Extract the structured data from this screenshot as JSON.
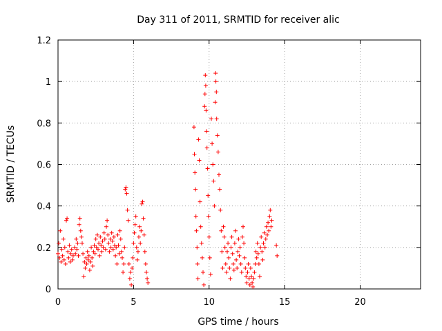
{
  "chart_data": {
    "type": "scatter",
    "title": "Day 311 of 2011, SRMTID for receiver alic",
    "xlabel": "GPS time / hours",
    "ylabel": "SRMTID / TECUs",
    "xlim": [
      0,
      24
    ],
    "ylim": [
      0,
      1.2
    ],
    "x_ticks": [
      0,
      5,
      10,
      15,
      20
    ],
    "x_tick_labels": [
      "0",
      "5",
      "10",
      "15",
      "20"
    ],
    "y_ticks": [
      0,
      0.2,
      0.4,
      0.6,
      0.8,
      1.0,
      1.2
    ],
    "y_tick_labels": [
      "0",
      "0.2",
      "0.4",
      "0.6",
      "0.8",
      "1",
      "1.2"
    ],
    "grid": true,
    "marker": "+",
    "color": "#ff0000",
    "series": [
      {
        "name": "SRMTID",
        "points": [
          [
            0.0,
            0.17
          ],
          [
            0.05,
            0.22
          ],
          [
            0.1,
            0.15
          ],
          [
            0.15,
            0.28
          ],
          [
            0.2,
            0.13
          ],
          [
            0.25,
            0.19
          ],
          [
            0.3,
            0.16
          ],
          [
            0.35,
            0.24
          ],
          [
            0.4,
            0.14
          ],
          [
            0.45,
            0.2
          ],
          [
            0.5,
            0.12
          ],
          [
            0.55,
            0.33
          ],
          [
            0.6,
            0.34
          ],
          [
            0.65,
            0.18
          ],
          [
            0.7,
            0.15
          ],
          [
            0.75,
            0.21
          ],
          [
            0.8,
            0.13
          ],
          [
            0.85,
            0.17
          ],
          [
            0.9,
            0.19
          ],
          [
            0.95,
            0.14
          ],
          [
            1.0,
            0.16
          ],
          [
            1.1,
            0.2
          ],
          [
            1.15,
            0.17
          ],
          [
            1.2,
            0.24
          ],
          [
            1.25,
            0.19
          ],
          [
            1.3,
            0.22
          ],
          [
            1.35,
            0.16
          ],
          [
            1.4,
            0.31
          ],
          [
            1.45,
            0.34
          ],
          [
            1.5,
            0.28
          ],
          [
            1.55,
            0.25
          ],
          [
            1.6,
            0.22
          ],
          [
            1.65,
            0.17
          ],
          [
            1.7,
            0.06
          ],
          [
            1.75,
            0.13
          ],
          [
            1.8,
            0.1
          ],
          [
            1.85,
            0.15
          ],
          [
            1.9,
            0.12
          ],
          [
            1.95,
            0.18
          ],
          [
            2.0,
            0.14
          ],
          [
            2.05,
            0.16
          ],
          [
            2.1,
            0.09
          ],
          [
            2.15,
            0.13
          ],
          [
            2.2,
            0.2
          ],
          [
            2.25,
            0.15
          ],
          [
            2.3,
            0.11
          ],
          [
            2.35,
            0.18
          ],
          [
            2.4,
            0.21
          ],
          [
            2.45,
            0.17
          ],
          [
            2.5,
            0.24
          ],
          [
            2.55,
            0.2
          ],
          [
            2.6,
            0.26
          ],
          [
            2.65,
            0.19
          ],
          [
            2.7,
            0.22
          ],
          [
            2.75,
            0.16
          ],
          [
            2.8,
            0.25
          ],
          [
            2.85,
            0.21
          ],
          [
            2.9,
            0.18
          ],
          [
            2.95,
            0.23
          ],
          [
            3.0,
            0.2
          ],
          [
            3.05,
            0.27
          ],
          [
            3.1,
            0.24
          ],
          [
            3.15,
            0.19
          ],
          [
            3.2,
            0.3
          ],
          [
            3.25,
            0.33
          ],
          [
            3.3,
            0.26
          ],
          [
            3.35,
            0.22
          ],
          [
            3.4,
            0.18
          ],
          [
            3.45,
            0.24
          ],
          [
            3.5,
            0.2
          ],
          [
            3.55,
            0.27
          ],
          [
            3.6,
            0.23
          ],
          [
            3.65,
            0.19
          ],
          [
            3.7,
            0.25
          ],
          [
            3.75,
            0.21
          ],
          [
            3.8,
            0.16
          ],
          [
            3.85,
            0.2
          ],
          [
            3.9,
            0.12
          ],
          [
            3.95,
            0.26
          ],
          [
            4.0,
            0.21
          ],
          [
            4.05,
            0.17
          ],
          [
            4.1,
            0.28
          ],
          [
            4.15,
            0.24
          ],
          [
            4.2,
            0.18
          ],
          [
            4.25,
            0.15
          ],
          [
            4.3,
            0.08
          ],
          [
            4.35,
            0.12
          ],
          [
            4.4,
            0.2
          ],
          [
            4.45,
            0.48
          ],
          [
            4.5,
            0.49
          ],
          [
            4.55,
            0.46
          ],
          [
            4.6,
            0.38
          ],
          [
            4.65,
            0.33
          ],
          [
            4.7,
            0.12
          ],
          [
            4.75,
            0.05
          ],
          [
            4.8,
            0.08
          ],
          [
            4.85,
            0.02
          ],
          [
            4.9,
            0.1
          ],
          [
            4.95,
            0.15
          ],
          [
            5.0,
            0.22
          ],
          [
            5.05,
            0.27
          ],
          [
            5.1,
            0.31
          ],
          [
            5.15,
            0.35
          ],
          [
            5.2,
            0.2
          ],
          [
            5.25,
            0.14
          ],
          [
            5.3,
            0.18
          ],
          [
            5.35,
            0.25
          ],
          [
            5.4,
            0.3
          ],
          [
            5.45,
            0.22
          ],
          [
            5.5,
            0.28
          ],
          [
            5.55,
            0.41
          ],
          [
            5.6,
            0.42
          ],
          [
            5.65,
            0.34
          ],
          [
            5.7,
            0.26
          ],
          [
            5.75,
            0.18
          ],
          [
            5.8,
            0.12
          ],
          [
            5.85,
            0.08
          ],
          [
            5.9,
            0.05
          ],
          [
            5.95,
            0.03
          ],
          [
            9.0,
            0.78
          ],
          [
            9.03,
            0.65
          ],
          [
            9.06,
            0.56
          ],
          [
            9.1,
            0.48
          ],
          [
            9.13,
            0.35
          ],
          [
            9.16,
            0.28
          ],
          [
            9.2,
            0.2
          ],
          [
            9.23,
            0.12
          ],
          [
            9.26,
            0.05
          ],
          [
            9.3,
            0.72
          ],
          [
            9.35,
            0.62
          ],
          [
            9.4,
            0.42
          ],
          [
            9.45,
            0.3
          ],
          [
            9.5,
            0.22
          ],
          [
            9.55,
            0.15
          ],
          [
            9.6,
            0.08
          ],
          [
            9.65,
            0.02
          ],
          [
            9.7,
            0.88
          ],
          [
            9.73,
            0.94
          ],
          [
            9.75,
            1.03
          ],
          [
            9.78,
            0.98
          ],
          [
            9.8,
            0.86
          ],
          [
            9.83,
            0.76
          ],
          [
            9.86,
            0.68
          ],
          [
            9.9,
            0.58
          ],
          [
            9.93,
            0.45
          ],
          [
            9.96,
            0.35
          ],
          [
            10.0,
            0.25
          ],
          [
            10.05,
            0.15
          ],
          [
            10.1,
            0.07
          ],
          [
            10.15,
            0.82
          ],
          [
            10.2,
            0.7
          ],
          [
            10.25,
            0.6
          ],
          [
            10.3,
            0.52
          ],
          [
            10.35,
            0.4
          ],
          [
            10.4,
            0.9
          ],
          [
            10.43,
            1.04
          ],
          [
            10.45,
            1.0
          ],
          [
            10.48,
            0.95
          ],
          [
            10.5,
            0.82
          ],
          [
            10.55,
            0.74
          ],
          [
            10.6,
            0.66
          ],
          [
            10.65,
            0.55
          ],
          [
            10.7,
            0.48
          ],
          [
            10.75,
            0.38
          ],
          [
            10.8,
            0.28
          ],
          [
            10.85,
            0.18
          ],
          [
            10.9,
            0.1
          ],
          [
            10.95,
            0.3
          ],
          [
            11.0,
            0.25
          ],
          [
            11.05,
            0.2
          ],
          [
            11.1,
            0.12
          ],
          [
            11.15,
            0.08
          ],
          [
            11.2,
            0.18
          ],
          [
            11.25,
            0.22
          ],
          [
            11.3,
            0.15
          ],
          [
            11.35,
            0.1
          ],
          [
            11.4,
            0.05
          ],
          [
            11.45,
            0.2
          ],
          [
            11.5,
            0.25
          ],
          [
            11.55,
            0.17
          ],
          [
            11.6,
            0.12
          ],
          [
            11.65,
            0.09
          ],
          [
            11.7,
            0.22
          ],
          [
            11.75,
            0.28
          ],
          [
            11.8,
            0.14
          ],
          [
            11.85,
            0.1
          ],
          [
            11.9,
            0.18
          ],
          [
            11.95,
            0.24
          ],
          [
            12.0,
            0.16
          ],
          [
            12.05,
            0.2
          ],
          [
            12.1,
            0.12
          ],
          [
            12.15,
            0.08
          ],
          [
            12.2,
            0.25
          ],
          [
            12.25,
            0.3
          ],
          [
            12.3,
            0.22
          ],
          [
            12.35,
            0.15
          ],
          [
            12.4,
            0.1
          ],
          [
            12.45,
            0.06
          ],
          [
            12.5,
            0.03
          ],
          [
            12.55,
            0.08
          ],
          [
            12.6,
            0.12
          ],
          [
            12.65,
            0.05
          ],
          [
            12.7,
            0.02
          ],
          [
            12.75,
            0.1
          ],
          [
            12.8,
            0.06
          ],
          [
            12.85,
            0.03
          ],
          [
            12.9,
            0.01
          ],
          [
            12.95,
            0.05
          ],
          [
            13.0,
            0.08
          ],
          [
            13.05,
            0.12
          ],
          [
            13.1,
            0.18
          ],
          [
            13.15,
            0.15
          ],
          [
            13.2,
            0.22
          ],
          [
            13.25,
            0.17
          ],
          [
            13.3,
            0.12
          ],
          [
            13.35,
            0.06
          ],
          [
            13.4,
            0.2
          ],
          [
            13.45,
            0.25
          ],
          [
            13.5,
            0.18
          ],
          [
            13.55,
            0.14
          ],
          [
            13.6,
            0.22
          ],
          [
            13.65,
            0.27
          ],
          [
            13.7,
            0.2
          ],
          [
            13.75,
            0.24
          ],
          [
            13.8,
            0.3
          ],
          [
            13.85,
            0.26
          ],
          [
            13.9,
            0.32
          ],
          [
            13.95,
            0.28
          ],
          [
            14.0,
            0.35
          ],
          [
            14.05,
            0.38
          ],
          [
            14.1,
            0.3
          ],
          [
            14.15,
            0.33
          ],
          [
            14.45,
            0.21
          ],
          [
            14.5,
            0.16
          ]
        ]
      }
    ]
  }
}
